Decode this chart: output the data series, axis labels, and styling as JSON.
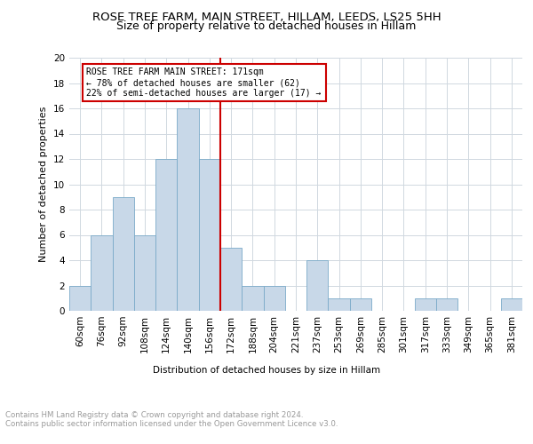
{
  "title1": "ROSE TREE FARM, MAIN STREET, HILLAM, LEEDS, LS25 5HH",
  "title2": "Size of property relative to detached houses in Hillam",
  "xlabel": "Distribution of detached houses by size in Hillam",
  "ylabel": "Number of detached properties",
  "bar_labels": [
    "60sqm",
    "76sqm",
    "92sqm",
    "108sqm",
    "124sqm",
    "140sqm",
    "156sqm",
    "172sqm",
    "188sqm",
    "204sqm",
    "221sqm",
    "237sqm",
    "253sqm",
    "269sqm",
    "285sqm",
    "301sqm",
    "317sqm",
    "333sqm",
    "349sqm",
    "365sqm",
    "381sqm"
  ],
  "bar_values": [
    2,
    6,
    9,
    6,
    12,
    16,
    12,
    5,
    2,
    2,
    0,
    4,
    1,
    1,
    0,
    0,
    1,
    1,
    0,
    0,
    1
  ],
  "bar_color": "#c8d8e8",
  "bar_edge_color": "#7aaac8",
  "vline_color": "#cc0000",
  "annotation_text": "ROSE TREE FARM MAIN STREET: 171sqm\n← 78% of detached houses are smaller (62)\n22% of semi-detached houses are larger (17) →",
  "annotation_box_color": "#ffffff",
  "annotation_box_edge": "#cc0000",
  "ylim": [
    0,
    20
  ],
  "yticks": [
    0,
    2,
    4,
    6,
    8,
    10,
    12,
    14,
    16,
    18,
    20
  ],
  "grid_color": "#d0d8e0",
  "footer_text": "Contains HM Land Registry data © Crown copyright and database right 2024.\nContains public sector information licensed under the Open Government Licence v3.0.",
  "title1_fontsize": 9.5,
  "title2_fontsize": 9.0,
  "annotation_fontsize": 7.0,
  "axis_fontsize": 7.5,
  "ylabel_fontsize": 8.0,
  "footer_fontsize": 6.2
}
